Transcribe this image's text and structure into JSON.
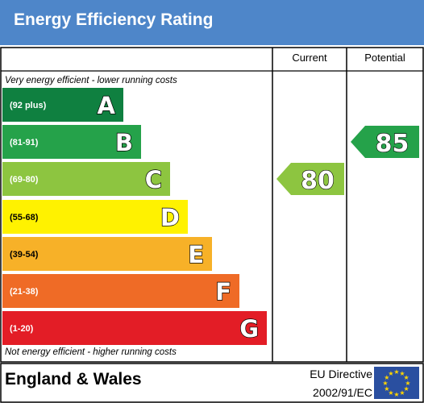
{
  "header": {
    "title": "Energy Efficiency Rating"
  },
  "columns": {
    "current": "Current",
    "potential": "Potential"
  },
  "notes": {
    "top": "Very energy efficient - lower running costs",
    "bottom": "Not energy efficient - higher running costs"
  },
  "footer": {
    "region": "England & Wales",
    "directive_line1": "EU Directive",
    "directive_line2": "2002/91/EC"
  },
  "colors": {
    "title_bar": "#4e86c9",
    "eu_flag": "#2a4fa0",
    "eu_star": "#ffd500"
  },
  "chart_data": {
    "type": "bar",
    "title": "Energy Efficiency Rating",
    "categories": [
      "A",
      "B",
      "C",
      "D",
      "E",
      "F",
      "G"
    ],
    "bands": [
      {
        "letter": "A",
        "range": "(92 plus)",
        "color": "#0f8040"
      },
      {
        "letter": "B",
        "range": "(81-91)",
        "color": "#25a24a"
      },
      {
        "letter": "C",
        "range": "(69-80)",
        "color": "#8dc540"
      },
      {
        "letter": "D",
        "range": "(55-68)",
        "color": "#fff200"
      },
      {
        "letter": "E",
        "range": "(39-54)",
        "color": "#f7b128"
      },
      {
        "letter": "F",
        "range": "(21-38)",
        "color": "#ef6b26"
      },
      {
        "letter": "G",
        "range": "(1-20)",
        "color": "#e31d26"
      }
    ],
    "ratings": {
      "current": {
        "value": 80,
        "band": "C",
        "color": "#8dc540"
      },
      "potential": {
        "value": 85,
        "band": "B",
        "color": "#25a24a"
      }
    }
  }
}
